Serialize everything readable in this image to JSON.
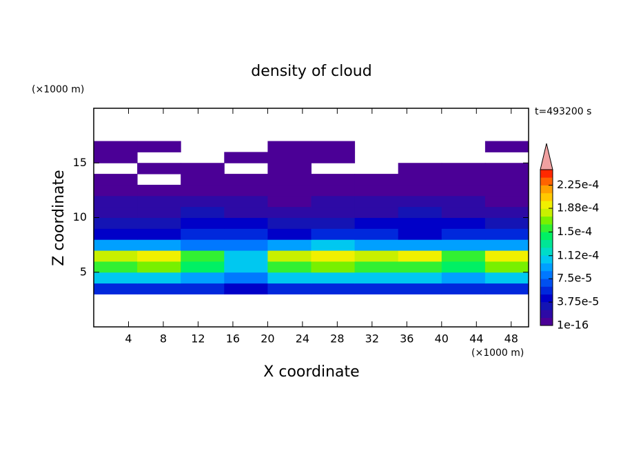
{
  "chart_data": {
    "type": "contour",
    "title": "density of cloud",
    "annotation": "t=493200 s",
    "xlabel": "X coordinate",
    "ylabel": "Z coordinate",
    "xunit": "(×1000 m)",
    "yunit": "(×1000 m)",
    "xlim": [
      0,
      50
    ],
    "ylim": [
      0,
      20
    ],
    "xticks": [
      4,
      8,
      12,
      16,
      20,
      24,
      28,
      32,
      36,
      40,
      44,
      48
    ],
    "yticks": [
      5,
      10,
      15
    ],
    "x": [
      2.5,
      7.5,
      12.5,
      17.5,
      22.5,
      27.5,
      32.5,
      37.5,
      42.5,
      47.5
    ],
    "y": [
      3.5,
      4.5,
      5.5,
      6.5,
      7.5,
      8.5,
      9.5,
      10.5,
      11.5,
      12.5,
      13.5,
      14.5,
      15.5,
      16.5
    ],
    "z": [
      [
        6e-05,
        6e-05,
        5e-05,
        4e-05,
        6e-05,
        6e-05,
        6e-05,
        6e-05,
        5e-05,
        6e-05
      ],
      [
        0.0001,
        0.0001,
        9e-05,
        8e-05,
        0.0001,
        0.0001,
        0.0001,
        0.0001,
        9e-05,
        0.0001
      ],
      [
        0.00016,
        0.00017,
        0.00014,
        0.00011,
        0.00016,
        0.00017,
        0.00016,
        0.00016,
        0.00014,
        0.00017
      ],
      [
        0.00018,
        0.00019,
        0.00015,
        0.00011,
        0.00018,
        0.00019,
        0.00018,
        0.00019,
        0.00015,
        0.00019
      ],
      [
        9e-05,
        9e-05,
        8e-05,
        8e-05,
        9e-05,
        0.0001,
        9e-05,
        9e-05,
        9e-05,
        9e-05
      ],
      [
        4e-05,
        4e-05,
        5e-05,
        5e-05,
        4e-05,
        5e-05,
        5e-05,
        4e-05,
        5e-05,
        5e-05
      ],
      [
        3e-05,
        3e-05,
        4e-05,
        4e-05,
        3e-05,
        3e-05,
        4e-05,
        4e-05,
        4e-05,
        3e-05
      ],
      [
        2e-05,
        2e-05,
        3e-05,
        2e-05,
        2e-05,
        2e-05,
        2e-05,
        3e-05,
        2e-05,
        2e-05
      ],
      [
        2e-05,
        1.5e-05,
        2e-05,
        1.5e-05,
        1e-05,
        1.5e-05,
        2e-05,
        2e-05,
        1.5e-05,
        1e-05
      ],
      [
        1e-05,
        5e-06,
        1e-05,
        5e-06,
        5e-06,
        5e-06,
        1e-05,
        5e-06,
        5e-06,
        5e-06
      ],
      [
        5e-06,
        null,
        5e-06,
        5e-06,
        5e-06,
        5e-06,
        5e-06,
        5e-06,
        5e-06,
        5e-06
      ],
      [
        null,
        5e-06,
        5e-06,
        null,
        5e-06,
        null,
        null,
        5e-06,
        5e-06,
        5e-06
      ],
      [
        5e-06,
        null,
        null,
        5e-06,
        5e-06,
        5e-06,
        null,
        null,
        null,
        null
      ],
      [
        5e-06,
        5e-06,
        null,
        null,
        5e-06,
        5e-06,
        null,
        null,
        null,
        5e-06
      ]
    ],
    "levels": [
      1e-16,
      1.25e-05,
      2.5e-05,
      3.75e-05,
      5e-05,
      6.25e-05,
      7.5e-05,
      8.75e-05,
      0.0001,
      0.0001125,
      0.000125,
      0.0001375,
      0.00015,
      0.0001625,
      0.000175,
      0.0001875,
      0.0002,
      0.0002125,
      0.000225,
      0.0002375,
      0.00025
    ],
    "colors": [
      "#4b0096",
      "#2d0aa5",
      "#1414b4",
      "#0000c8",
      "#0028dc",
      "#0050f0",
      "#0078ff",
      "#00a0ff",
      "#00c8f0",
      "#00dcc8",
      "#00e696",
      "#00f064",
      "#32f032",
      "#78f000",
      "#c8f000",
      "#f0f000",
      "#ffc800",
      "#ffa000",
      "#ff6400",
      "#ff2800"
    ],
    "overflow_color": "#f0a0a0",
    "colorbar_ticks": [
      {
        "value": 1e-16,
        "label": "1e-16"
      },
      {
        "value": 3.75e-05,
        "label": "3.75e-5"
      },
      {
        "value": 7.5e-05,
        "label": "7.5e-5"
      },
      {
        "value": 0.000112,
        "label": "1.12e-4"
      },
      {
        "value": 0.00015,
        "label": "1.5e-4"
      },
      {
        "value": 0.000188,
        "label": "1.88e-4"
      },
      {
        "value": 0.000225,
        "label": "2.25e-4"
      }
    ]
  }
}
